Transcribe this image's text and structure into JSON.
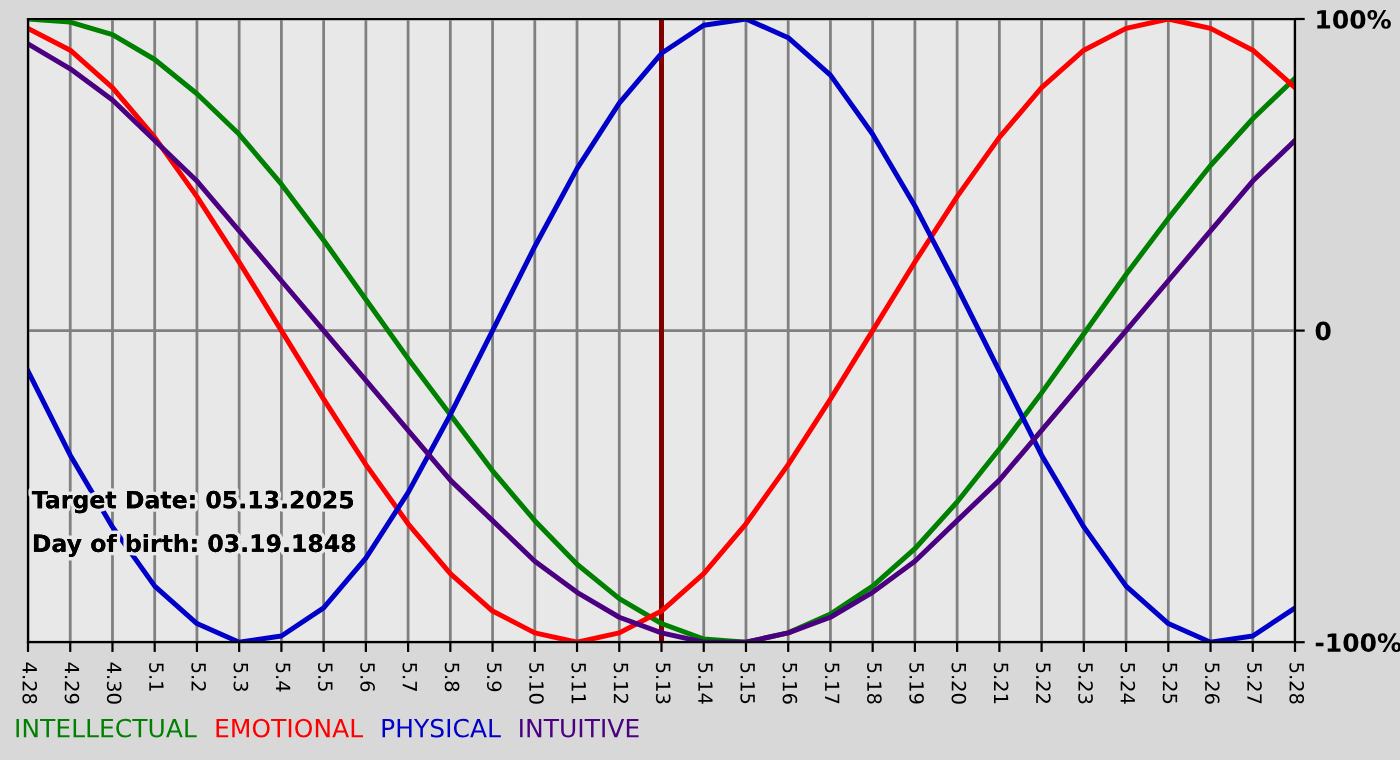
{
  "chart_data": {
    "type": "line",
    "categories": [
      "4.28",
      "4.29",
      "4.30",
      "5.1",
      "5.2",
      "5.3",
      "5.4",
      "5.5",
      "5.6",
      "5.7",
      "5.8",
      "5.9",
      "5.10",
      "5.11",
      "5.12",
      "5.13",
      "5.14",
      "5.15",
      "5.16",
      "5.17",
      "5.18",
      "5.19",
      "5.20",
      "5.21",
      "5.22",
      "5.23",
      "5.24",
      "5.25",
      "5.26",
      "5.27",
      "5.28"
    ],
    "series": [
      {
        "name": "INTELLECTUAL",
        "color": "#008000",
        "values": [
          100,
          99,
          95,
          87,
          76,
          63,
          47,
          29,
          10,
          -9,
          -27,
          -45,
          -61,
          -75,
          -86,
          -94,
          -99,
          -100,
          -97,
          -91,
          -82,
          -70,
          -55,
          -38,
          -20,
          -1,
          18,
          36,
          53,
          68,
          81
        ]
      },
      {
        "name": "EMOTIONAL",
        "color": "#ff0000",
        "values": [
          97,
          90,
          78,
          62,
          43,
          22,
          0,
          -22,
          -43,
          -62,
          -78,
          -90,
          -97,
          -100,
          -97,
          -90,
          -78,
          -62,
          -43,
          -22,
          0,
          22,
          43,
          62,
          78,
          90,
          97,
          100,
          97,
          90,
          78
        ]
      },
      {
        "name": "PHYSICAL",
        "color": "#0000c8",
        "values": [
          -13,
          -40,
          -63,
          -82,
          -94,
          -100,
          -98,
          -89,
          -73,
          -52,
          -27,
          0,
          27,
          52,
          73,
          89,
          98,
          100,
          94,
          82,
          63,
          40,
          14,
          -13,
          -40,
          -63,
          -82,
          -94,
          -100,
          -98,
          -89
        ]
      },
      {
        "name": "INTUITIVE",
        "color": "#4b0082",
        "values": [
          92,
          84,
          74,
          61,
          48,
          32,
          16,
          0,
          -16,
          -32,
          -48,
          -61,
          -74,
          -84,
          -92,
          -97,
          -100,
          -100,
          -97,
          -92,
          -84,
          -74,
          -61,
          -48,
          -32,
          -16,
          0,
          16,
          32,
          48,
          61
        ]
      }
    ],
    "ylim": [
      -100,
      100
    ],
    "yticks": [
      {
        "value": 100,
        "label": "100%"
      },
      0,
      {
        "value": -100,
        "label": "-100%"
      }
    ],
    "ref_lines": [
      {
        "axis": "x",
        "value": "5.13",
        "label": null,
        "color": "#800000"
      }
    ],
    "annotations": [
      "Target Date: 05.13.2025",
      "Day of birth: 03.19.1848"
    ],
    "grid": true,
    "legend": "bottom",
    "marker": "none",
    "line_style": "solid"
  }
}
